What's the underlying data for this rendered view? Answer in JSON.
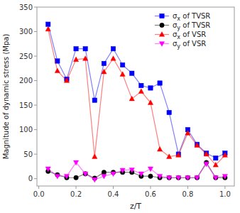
{
  "chart_data": {
    "type": "line",
    "xlabel": "z/T",
    "ylabel": "Magnitude of dynamic stress (Mpa)",
    "x": [
      0.05,
      0.1,
      0.15,
      0.2,
      0.25,
      0.3,
      0.35,
      0.4,
      0.45,
      0.5,
      0.55,
      0.6,
      0.65,
      0.7,
      0.75,
      0.8,
      0.85,
      0.9,
      0.95,
      1.0
    ],
    "series": [
      {
        "name": "σx of TVSR",
        "color": "#0000FF",
        "marker": "square",
        "values": [
          315,
          240,
          203,
          265,
          265,
          160,
          235,
          265,
          232,
          215,
          190,
          185,
          195,
          135,
          50,
          100,
          70,
          52,
          42,
          52
        ]
      },
      {
        "name": "σy of TVSR",
        "color": "#000000",
        "marker": "circle",
        "values": [
          15,
          8,
          2,
          2,
          10,
          1,
          13,
          13,
          13,
          13,
          5,
          5,
          2,
          2,
          2,
          2,
          2,
          33,
          2,
          2
        ]
      },
      {
        "name": "σx of VSR",
        "color": "#FF0000",
        "marker": "triangle-up",
        "values": [
          305,
          220,
          200,
          243,
          245,
          45,
          218,
          245,
          213,
          163,
          178,
          155,
          60,
          45,
          48,
          93,
          68,
          50,
          28,
          48
        ]
      },
      {
        "name": "σy of VSR",
        "color": "#FF00FF",
        "marker": "triangle-down",
        "values": [
          20,
          5,
          5,
          33,
          10,
          -2,
          5,
          10,
          17,
          18,
          10,
          20,
          5,
          2,
          2,
          2,
          2,
          30,
          2,
          5
        ]
      }
    ],
    "xlim": [
      -0.01,
      1.05
    ],
    "ylim": [
      -15,
      350
    ],
    "xticks": [
      {
        "value": 0.0,
        "label": "0.0"
      },
      0.2,
      0.4,
      0.6,
      0.8,
      {
        "value": 1.0,
        "label": "1.0"
      }
    ],
    "yticks": [
      0,
      50,
      100,
      150,
      200,
      250,
      300,
      350
    ],
    "grid": false,
    "legend": "upper right"
  }
}
